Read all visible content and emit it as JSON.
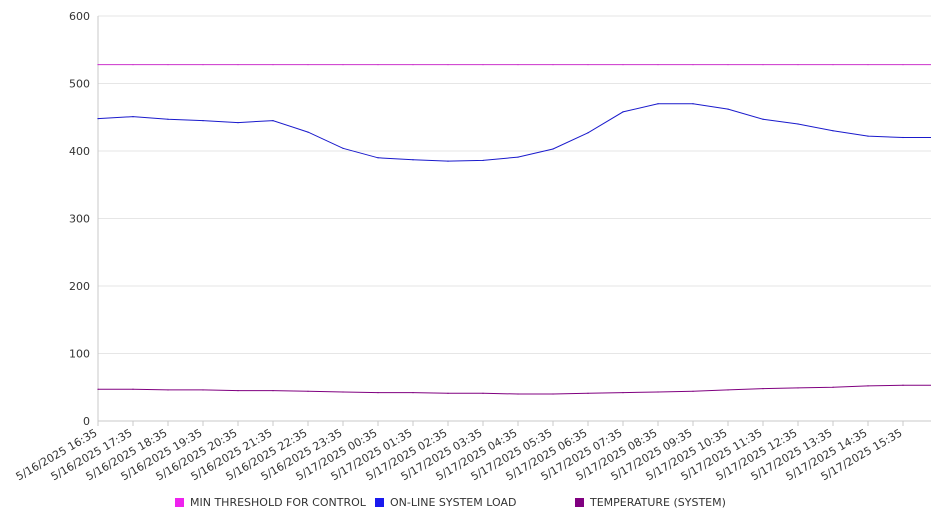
{
  "chart_data": {
    "type": "line",
    "title": "",
    "xlabel": "",
    "ylabel": "",
    "ylim": [
      0,
      600
    ],
    "yticks": [
      0,
      100,
      200,
      300,
      400,
      500,
      600
    ],
    "grid": true,
    "legend_position": "bottom",
    "categories": [
      "5/16/2025 16:35",
      "5/16/2025 17:35",
      "5/16/2025 18:35",
      "5/16/2025 19:35",
      "5/16/2025 20:35",
      "5/16/2025 21:35",
      "5/16/2025 22:35",
      "5/16/2025 23:35",
      "5/17/2025 00:35",
      "5/17/2025 01:35",
      "5/17/2025 02:35",
      "5/17/2025 03:35",
      "5/17/2025 04:35",
      "5/17/2025 05:35",
      "5/17/2025 06:35",
      "5/17/2025 07:35",
      "5/17/2025 08:35",
      "5/17/2025 09:35",
      "5/17/2025 10:35",
      "5/17/2025 11:35",
      "5/17/2025 12:35",
      "5/17/2025 13:35",
      "5/17/2025 14:35",
      "5/17/2025 15:35"
    ],
    "series": [
      {
        "name": "MIN THRESHOLD FOR CONTROL",
        "color": "#cc33cc",
        "values": [
          528,
          528,
          528,
          528,
          528,
          528,
          528,
          528,
          528,
          528,
          528,
          528,
          528,
          528,
          528,
          528,
          528,
          528,
          528,
          528,
          528,
          528,
          528,
          528
        ]
      },
      {
        "name": "ON-LINE SYSTEM LOAD",
        "color": "#1a1acc",
        "values": [
          448,
          451,
          447,
          445,
          442,
          445,
          428,
          404,
          390,
          387,
          385,
          386,
          391,
          403,
          427,
          458,
          470,
          470,
          462,
          447,
          440,
          430,
          422,
          420
        ]
      },
      {
        "name": "TEMPERATURE (SYSTEM)",
        "color": "#800080",
        "values": [
          47,
          47,
          46,
          46,
          45,
          45,
          44,
          43,
          42,
          42,
          41,
          41,
          40,
          40,
          41,
          42,
          43,
          44,
          46,
          48,
          49,
          50,
          52,
          53
        ]
      }
    ]
  }
}
